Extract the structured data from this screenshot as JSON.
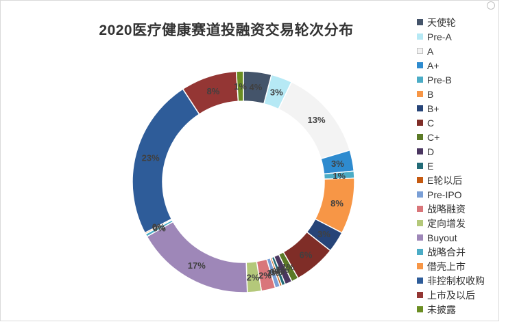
{
  "title": "2020医疗健康赛道投融资交易轮次分布",
  "chart_data": {
    "type": "donut",
    "title": "2020医疗健康赛道投融资交易轮次分布",
    "slices": [
      {
        "name": "天使轮",
        "value": 4,
        "label": "4%",
        "color": "#44546a"
      },
      {
        "name": "Pre-A",
        "value": 3,
        "label": "3%",
        "color": "#b6e9f5"
      },
      {
        "name": "A",
        "value": 13,
        "label": "13%",
        "color": "#f3f3f3"
      },
      {
        "name": "A+",
        "value": 3,
        "label": "3%",
        "color": "#2e8bcf"
      },
      {
        "name": "Pre-B",
        "value": 1,
        "label": "1%",
        "color": "#4bacc6"
      },
      {
        "name": "B",
        "value": 8,
        "label": "8%",
        "color": "#f79646"
      },
      {
        "name": "B+",
        "value": 3,
        "label": "3%",
        "color": "#264478"
      },
      {
        "name": "C",
        "value": 6,
        "label": "6%",
        "color": "#7f2d27"
      },
      {
        "name": "C+",
        "value": 1,
        "label": "1%",
        "color": "#5b7a26"
      },
      {
        "name": "D",
        "value": 1,
        "label": "1%",
        "color": "#4a3660"
      },
      {
        "name": "E",
        "value": 0.5,
        "label": "0%",
        "color": "#226b77"
      },
      {
        "name": "E轮以后",
        "value": 0.3,
        "label": "0%",
        "color": "#c55a11"
      },
      {
        "name": "Pre-IPO",
        "value": 0.7,
        "label": "1%",
        "color": "#7a9fd6"
      },
      {
        "name": "战略融资",
        "value": 2,
        "label": "2%",
        "color": "#d9767a"
      },
      {
        "name": "定向增发",
        "value": 2,
        "label": "2%",
        "color": "#b4c87a"
      },
      {
        "name": "Buyout",
        "value": 17,
        "label": "17%",
        "color": "#9e87b8"
      },
      {
        "name": "战略合并",
        "value": 0.4,
        "label": "0%",
        "color": "#4bacc6"
      },
      {
        "name": "借壳上市",
        "value": 0.2,
        "label": "0%",
        "color": "#f79646"
      },
      {
        "name": "非控制权收购",
        "value": 23,
        "label": "23%",
        "color": "#2e5c99"
      },
      {
        "name": "上市及以后",
        "value": 8,
        "label": "8%",
        "color": "#943634"
      },
      {
        "name": "未披露",
        "value": 1,
        "label": "1%",
        "color": "#6b8e23"
      }
    ]
  }
}
